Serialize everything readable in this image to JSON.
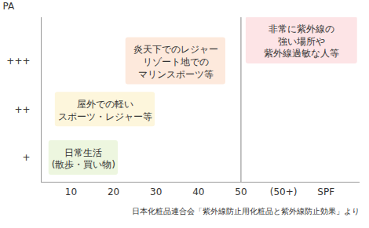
{
  "chart_data": {
    "type": "annotated_boxes",
    "y_label": "PA",
    "caption": "日本化粧品連合会「紫外線防止用化粧品と紫外線防止効果」より",
    "xlim": [
      3,
      78
    ],
    "xticks": [
      10,
      20,
      30,
      40,
      50,
      {
        "value": 60,
        "label": "(50+)"
      },
      {
        "value": 70,
        "label": "SPF"
      }
    ],
    "ylim": [
      0.5,
      3.9
    ],
    "yticks": [
      {
        "value": 1,
        "label": "+"
      },
      {
        "value": 2,
        "label": "++"
      },
      {
        "value": 3,
        "label": "+++"
      }
    ],
    "reference_line": 50,
    "grid": false,
    "boxes": [
      {
        "text": "日常生活\n(散歩・買い物)",
        "x1": 4.8,
        "x2": 21.1,
        "y": 1,
        "color": "#edf6df"
      },
      {
        "text": "屋外での軽い\nスポーツ・レジャー等",
        "x1": 6.3,
        "x2": 29.8,
        "y": 2,
        "color": "#fdf6dc"
      },
      {
        "text": "炎天下でのレジャー\nリゾート地での\nマリンスポーツ等",
        "x1": 22.9,
        "x2": 46.4,
        "y": 3,
        "color": "#fde9dc"
      },
      {
        "text": "非常に紫外線の\n強い場所や\n紫外線過敏な人等",
        "x1": 51.2,
        "x2": 77.4,
        "y": 3.43,
        "color": "#fde4e6"
      }
    ]
  }
}
